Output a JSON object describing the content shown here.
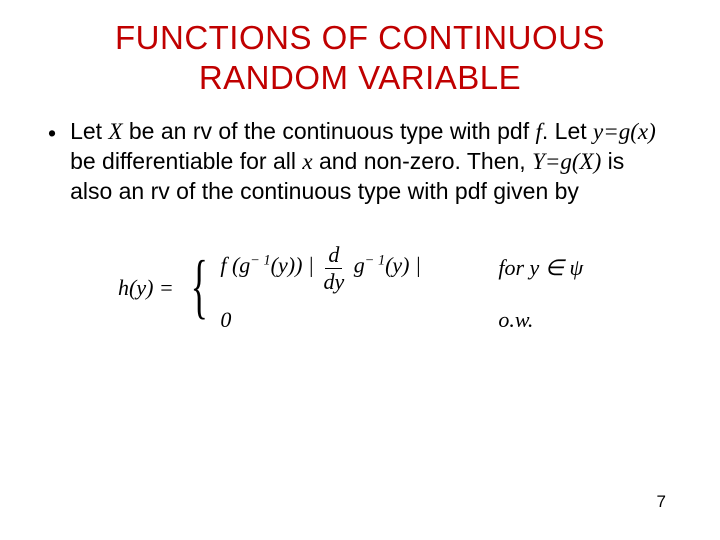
{
  "title_line1": "FUNCTIONS OF CONTINUOUS",
  "title_line2": "RANDOM VARIABLE",
  "bullet": {
    "t1": "Let ",
    "X": "X",
    "t2": " be an rv of the continuous type with pdf ",
    "f": "f",
    "t3": ". Let ",
    "ygx": "y=g(x)",
    "t4": " be differentiable for all ",
    "x": "x",
    "t5": " and non-zero. Then, ",
    "YgX": "Y=g(X)",
    "t6": " is also an rv of the continuous type with pdf given by"
  },
  "formula": {
    "lhs": "h(y) =",
    "top_expr_a": "f (g",
    "top_expr_sup": "− 1",
    "top_expr_b": "(y)) |",
    "frac_num": "d",
    "frac_den": "dy",
    "top_expr_c": "g",
    "top_expr_sup2": "− 1",
    "top_expr_d": "(y) |",
    "top_cond_a": "for",
    "top_cond_b": " y ∈ ψ",
    "bot_expr": "0",
    "bot_cond": "o.w."
  },
  "page_number": "7",
  "colors": {
    "title": "#c00000",
    "text": "#000000",
    "background": "#ffffff"
  }
}
